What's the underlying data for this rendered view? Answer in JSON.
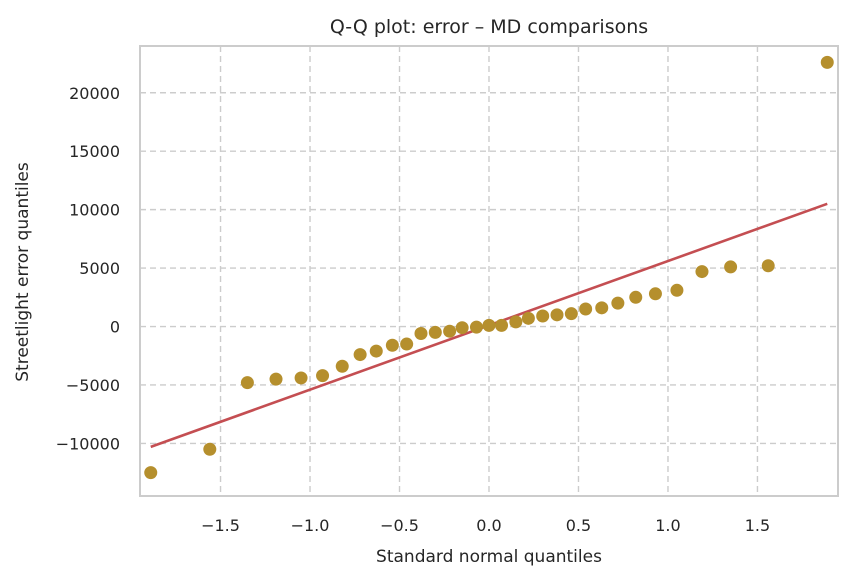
{
  "chart_data": {
    "type": "scatter",
    "title": "Q-Q plot: error – MD comparisons",
    "xlabel": "Standard normal quantiles",
    "ylabel": "Streetlight error quantiles",
    "xlim": [
      -1.95,
      1.95
    ],
    "ylim": [
      -14500,
      24000
    ],
    "xticks": [
      -1.5,
      -1.0,
      -0.5,
      0.0,
      0.5,
      1.0,
      1.5
    ],
    "xtick_labels": [
      "−1.5",
      "−1.0",
      "−0.5",
      "0.0",
      "0.5",
      "1.0",
      "1.5"
    ],
    "yticks": [
      -10000,
      -5000,
      0,
      5000,
      10000,
      15000,
      20000
    ],
    "ytick_labels": [
      "−10000",
      "−5000",
      "0",
      "5000",
      "10000",
      "15000",
      "20000"
    ],
    "grid": true,
    "colors": {
      "points": "#b58f2d",
      "line": "#c44e52",
      "grid": "#cccccc",
      "frame": "#cccccc",
      "text": "#262626"
    },
    "series": [
      {
        "type": "scatter",
        "x": [
          -1.89,
          -1.56,
          -1.35,
          -1.19,
          -1.05,
          -0.93,
          -0.82,
          -0.72,
          -0.63,
          -0.54,
          -0.46,
          -0.38,
          -0.3,
          -0.22,
          -0.15,
          -0.07,
          0.0,
          0.07,
          0.15,
          0.22,
          0.3,
          0.38,
          0.46,
          0.54,
          0.63,
          0.72,
          0.82,
          0.93,
          1.05,
          1.19,
          1.35,
          1.56,
          1.89
        ],
        "y": [
          -12500,
          -10500,
          -4800,
          -4500,
          -4400,
          -4200,
          -3400,
          -2400,
          -2100,
          -1600,
          -1500,
          -600,
          -500,
          -400,
          -100,
          -50,
          100,
          100,
          400,
          700,
          900,
          1000,
          1100,
          1500,
          1600,
          2000,
          2500,
          2800,
          3100,
          4700,
          5100,
          5200,
          22600
        ]
      },
      {
        "type": "line",
        "x": [
          -1.89,
          1.89
        ],
        "y": [
          -10300,
          10500
        ]
      }
    ]
  }
}
